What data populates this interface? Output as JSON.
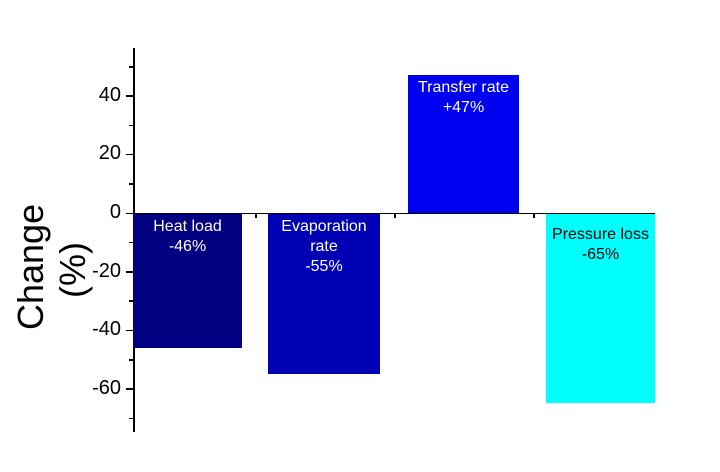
{
  "chart_data": {
    "type": "bar",
    "title": "",
    "xlabel": "",
    "ylabel": "Change (%)",
    "ylim": [
      -75,
      57
    ],
    "yticks": [
      40,
      20,
      0,
      -20,
      -40,
      -60
    ],
    "grid": false,
    "legend": null,
    "categories": [
      "Heat load",
      "Evaporation rate",
      "Transfer rate",
      "Pressure loss"
    ],
    "values": [
      -46,
      -55,
      47,
      -65
    ],
    "annotations": [
      "Heat load\n-46%",
      "Evaporation\nrate\n-55%",
      "Transfer rate\n+47%",
      "Pressure loss\n-65%"
    ],
    "colors": [
      "#000080",
      "#0000b4",
      "#0000f0",
      "#00ffff"
    ],
    "label_colors": [
      "#ffffff",
      "#ffffff",
      "#ffffff",
      "#000000"
    ]
  }
}
